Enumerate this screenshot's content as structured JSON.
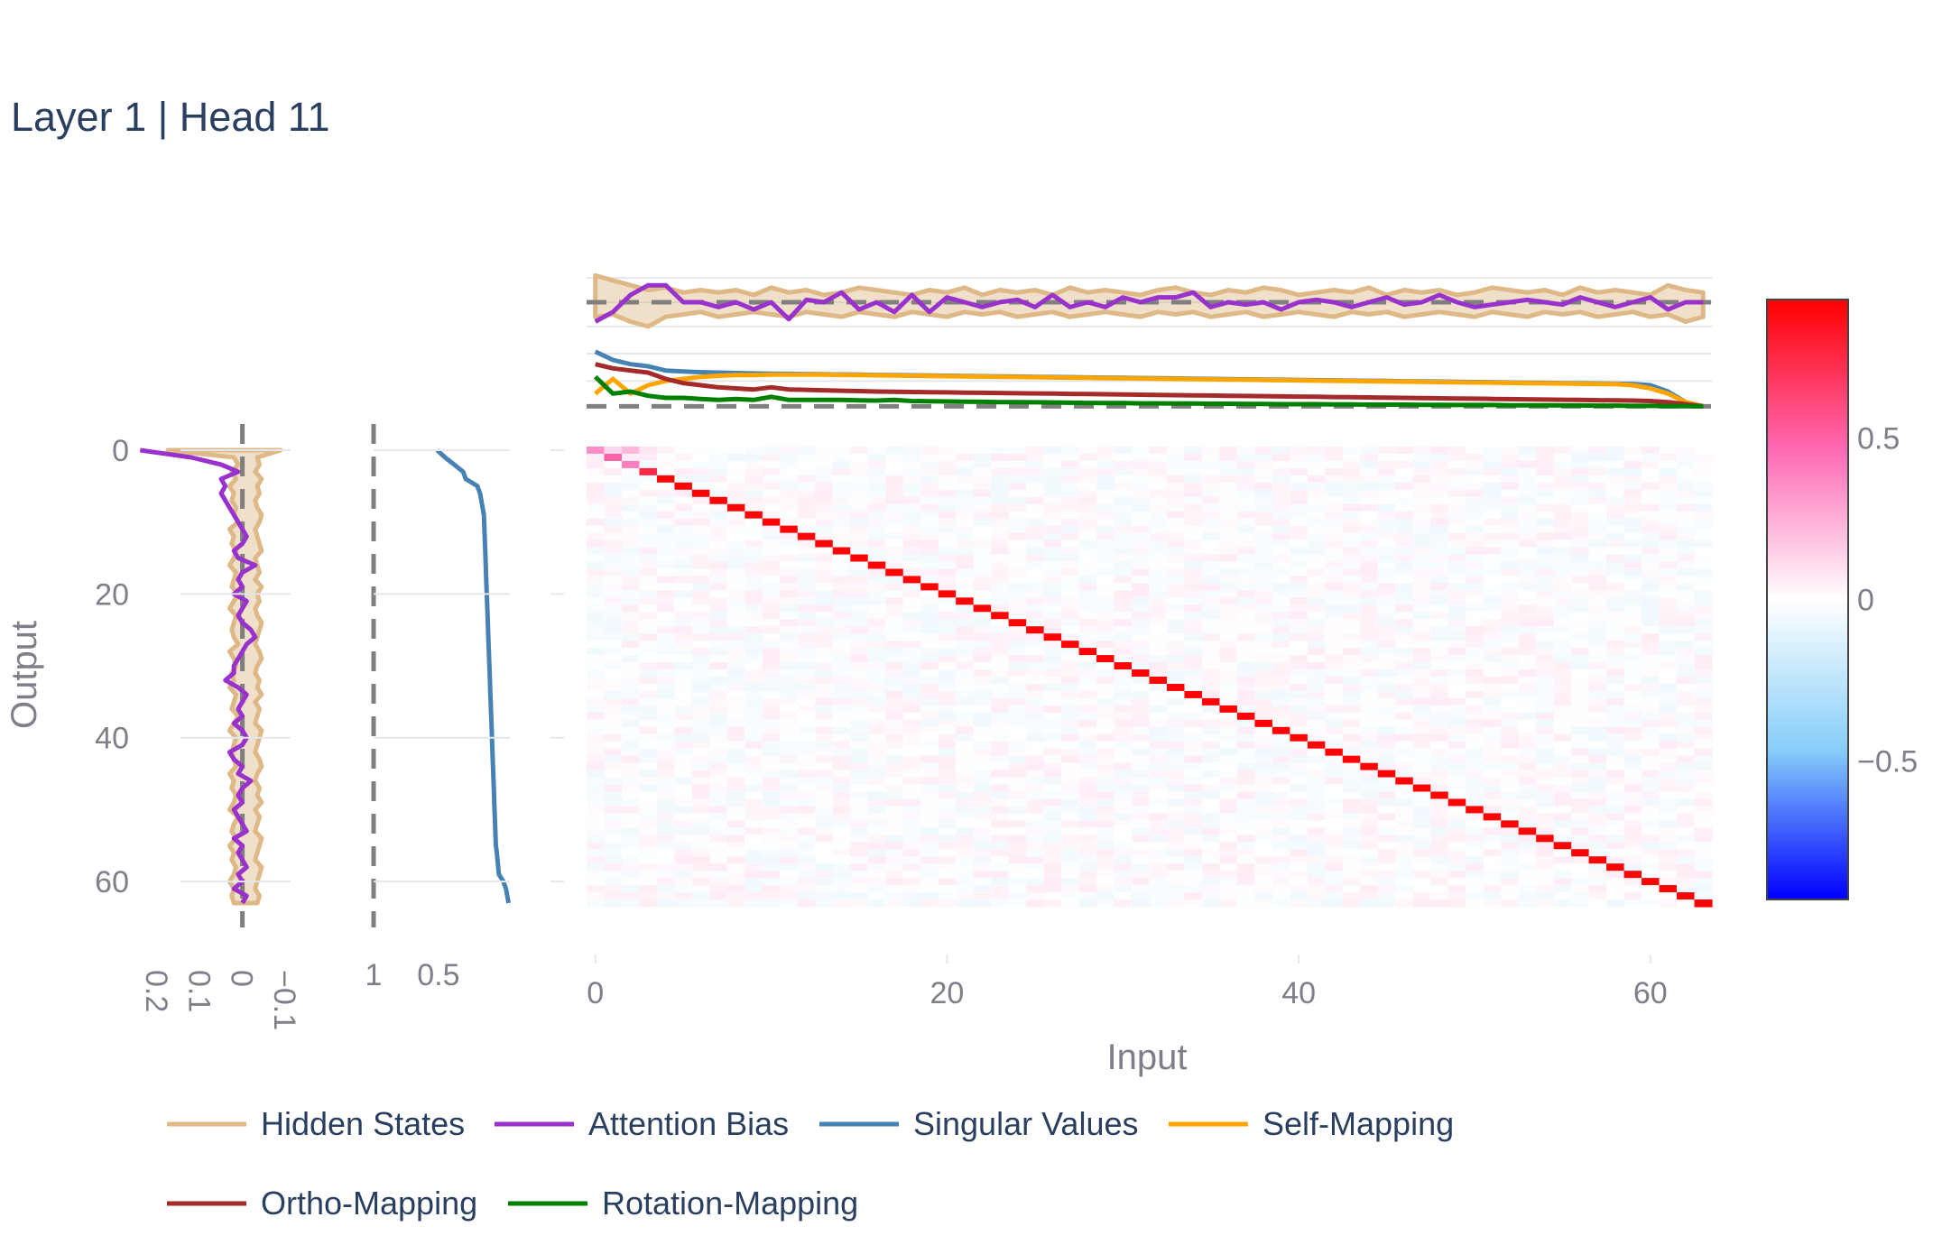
{
  "title": "Layer 1 | Head 11",
  "colors": {
    "hidden_states": "#deb887",
    "attention_bias": "#9932cc",
    "singular_values": "#4682b4",
    "self_mapping": "#ffa500",
    "ortho_mapping": "#a52a2a",
    "rotation_mapping": "#008000",
    "reference_line": "#7f7f7f",
    "colorscale": [
      "#0000ff",
      "#87cefa",
      "#ffffff",
      "#ff69b4",
      "#ff0000"
    ]
  },
  "chart_data": [
    {
      "type": "heatmap",
      "name": "main-heatmap",
      "xlabel": "Input",
      "ylabel": "Output",
      "n": 64,
      "xlim": [
        -0.5,
        63.5
      ],
      "ylim": [
        63.5,
        -0.5
      ],
      "x_ticks": [
        0,
        20,
        40,
        60
      ],
      "y_ticks": [
        0,
        20,
        40,
        60
      ],
      "z_range": [
        -0.93,
        0.93
      ],
      "diagonal_value": 0.92,
      "diagonal_start": 4,
      "first_row_values": [
        -0.3,
        0.12,
        0.22,
        0.08
      ],
      "diagonal_head_values": [
        0.35,
        0.5,
        0.4,
        0.75
      ],
      "note_offdiagonal": "near 0 (|z| < 0.1)"
    },
    {
      "type": "line",
      "name": "left-margin-hidden-states-and-bias",
      "orientation": "vertical",
      "x_axis_reversed": true,
      "x_ticks": [
        0.2,
        0.1,
        0,
        -0.1
      ],
      "xlim": [
        0.23,
        -0.13
      ],
      "reference_x": 0,
      "band_upper": [
        0.175,
        0.02,
        0.01,
        0.025,
        0.015,
        0.03,
        0.02,
        0.025,
        0.015,
        0.02,
        0.01,
        0.03,
        0.02,
        0.025,
        0.015,
        0.02,
        0.03,
        0.015,
        0.02,
        0.025,
        0.01,
        0.02,
        0.03,
        0.015,
        0.02,
        0.025,
        0.02,
        0.01,
        0.03,
        0.02,
        0.015,
        0.025,
        0.02,
        0.03,
        0.015,
        0.02,
        0.025,
        0.01,
        0.02,
        0.03,
        0.015,
        0.02,
        0.025,
        0.02,
        0.015,
        0.03,
        0.02,
        0.025,
        0.015,
        0.02,
        0.03,
        0.01,
        0.02,
        0.025,
        0.015,
        0.03,
        0.02,
        0.025,
        0.015,
        0.02,
        0.03,
        0.02,
        0.025,
        0.02
      ],
      "band_lower": [
        -0.09,
        -0.035,
        -0.04,
        -0.03,
        -0.045,
        -0.035,
        -0.04,
        -0.03,
        -0.035,
        -0.045,
        -0.04,
        -0.03,
        -0.035,
        -0.04,
        -0.045,
        -0.03,
        -0.035,
        -0.04,
        -0.03,
        -0.045,
        -0.035,
        -0.04,
        -0.03,
        -0.035,
        -0.045,
        -0.04,
        -0.035,
        -0.03,
        -0.04,
        -0.045,
        -0.035,
        -0.03,
        -0.04,
        -0.035,
        -0.045,
        -0.03,
        -0.04,
        -0.035,
        -0.03,
        -0.045,
        -0.04,
        -0.035,
        -0.03,
        -0.04,
        -0.045,
        -0.035,
        -0.03,
        -0.04,
        -0.035,
        -0.045,
        -0.03,
        -0.04,
        -0.035,
        -0.03,
        -0.045,
        -0.04,
        -0.035,
        -0.03,
        -0.045,
        -0.04,
        -0.035,
        -0.03,
        -0.04,
        -0.035
      ],
      "attention_bias": [
        0.24,
        0.12,
        0.05,
        0.01,
        0.05,
        0.04,
        0.05,
        0.04,
        0.03,
        0.02,
        0.01,
        0.0,
        -0.01,
        0.0,
        0.02,
        0.01,
        -0.03,
        0.0,
        0.01,
        0.0,
        0.02,
        -0.01,
        0.0,
        0.01,
        0.0,
        -0.02,
        -0.03,
        -0.01,
        0.0,
        0.01,
        0.02,
        0.02,
        0.04,
        0.01,
        -0.01,
        0.0,
        0.01,
        0.0,
        0.02,
        0.0,
        -0.01,
        0.0,
        0.03,
        0.02,
        0.0,
        0.01,
        -0.02,
        0.0,
        0.01,
        0.0,
        0.02,
        0.01,
        0.0,
        -0.01,
        0.02,
        0.0,
        0.01,
        0.0,
        -0.01,
        0.01,
        0.0,
        0.02,
        -0.01,
        0.0
      ]
    },
    {
      "type": "line",
      "name": "left-margin-singular-values",
      "orientation": "vertical",
      "x_axis_reversed": true,
      "x_ticks": [
        1,
        0.5
      ],
      "xlim": [
        1.0,
        -0.05
      ],
      "reference_x": 1,
      "singular_values": [
        0.51,
        0.45,
        0.38,
        0.31,
        0.29,
        0.2,
        0.18,
        0.17,
        0.16,
        0.15,
        0.148,
        0.146,
        0.144,
        0.142,
        0.14,
        0.138,
        0.136,
        0.134,
        0.132,
        0.13,
        0.128,
        0.126,
        0.124,
        0.122,
        0.12,
        0.118,
        0.116,
        0.114,
        0.112,
        0.11,
        0.108,
        0.106,
        0.104,
        0.102,
        0.1,
        0.098,
        0.096,
        0.094,
        0.092,
        0.09,
        0.088,
        0.086,
        0.084,
        0.082,
        0.08,
        0.078,
        0.076,
        0.074,
        0.072,
        0.07,
        0.068,
        0.066,
        0.064,
        0.062,
        0.06,
        0.058,
        0.05,
        0.045,
        0.04,
        0.035,
        0.0,
        -0.02,
        -0.03,
        -0.04
      ]
    },
    {
      "type": "line",
      "name": "top-margin-hidden-states-and-bias",
      "reference_y": 0,
      "ylim": [
        -0.13,
        0.13
      ],
      "band_upper": [
        0.11,
        0.09,
        0.07,
        0.05,
        0.06,
        0.04,
        0.05,
        0.04,
        0.05,
        0.03,
        0.06,
        0.04,
        0.05,
        0.03,
        0.04,
        0.06,
        0.05,
        0.04,
        0.03,
        0.05,
        0.04,
        0.06,
        0.03,
        0.05,
        0.04,
        0.05,
        0.03,
        0.06,
        0.04,
        0.05,
        0.04,
        0.03,
        0.05,
        0.06,
        0.04,
        0.03,
        0.05,
        0.04,
        0.06,
        0.05,
        0.03,
        0.04,
        0.05,
        0.04,
        0.06,
        0.03,
        0.05,
        0.04,
        0.05,
        0.03,
        0.04,
        0.06,
        0.05,
        0.04,
        0.05,
        0.03,
        0.06,
        0.04,
        0.05,
        0.04,
        0.03,
        0.07,
        0.05,
        0.04
      ],
      "band_lower": [
        -0.06,
        -0.05,
        -0.08,
        -0.1,
        -0.06,
        -0.05,
        -0.04,
        -0.06,
        -0.05,
        -0.04,
        -0.05,
        -0.06,
        -0.04,
        -0.05,
        -0.06,
        -0.04,
        -0.05,
        -0.06,
        -0.04,
        -0.05,
        -0.06,
        -0.04,
        -0.05,
        -0.04,
        -0.06,
        -0.05,
        -0.04,
        -0.06,
        -0.05,
        -0.04,
        -0.05,
        -0.06,
        -0.04,
        -0.05,
        -0.04,
        -0.06,
        -0.05,
        -0.04,
        -0.06,
        -0.05,
        -0.04,
        -0.05,
        -0.06,
        -0.04,
        -0.05,
        -0.04,
        -0.06,
        -0.05,
        -0.04,
        -0.05,
        -0.06,
        -0.04,
        -0.05,
        -0.06,
        -0.04,
        -0.05,
        -0.04,
        -0.06,
        -0.05,
        -0.04,
        -0.06,
        -0.05,
        -0.08,
        -0.06
      ],
      "attention_bias": [
        -0.08,
        -0.04,
        0.03,
        0.07,
        0.07,
        0.0,
        0.0,
        -0.02,
        0.0,
        -0.03,
        0.0,
        -0.07,
        0.01,
        0.0,
        0.04,
        -0.03,
        0.0,
        -0.04,
        0.03,
        -0.04,
        0.02,
        0.0,
        -0.02,
        0.0,
        0.01,
        -0.02,
        0.03,
        -0.02,
        0.0,
        -0.02,
        0.02,
        0.0,
        0.02,
        0.02,
        0.04,
        -0.02,
        0.0,
        -0.01,
        0.0,
        -0.03,
        0.0,
        0.01,
        0.0,
        -0.02,
        0.0,
        0.02,
        -0.01,
        0.0,
        0.03,
        0.0,
        -0.02,
        -0.01,
        0.0,
        0.01,
        0.0,
        -0.01,
        0.02,
        0.0,
        -0.02,
        0.0,
        0.02,
        -0.03,
        0.0,
        0.0
      ]
    },
    {
      "type": "line",
      "name": "top-margin-mappings",
      "reference_y": 0,
      "ylim": [
        -0.02,
        0.28
      ],
      "x_ticks": [
        0,
        20,
        40,
        60
      ],
      "singular_values": [
        0.26,
        0.22,
        0.2,
        0.19,
        0.17,
        0.165,
        0.162,
        0.16,
        0.158,
        0.156,
        0.155,
        0.154,
        0.153,
        0.152,
        0.151,
        0.15,
        0.149,
        0.148,
        0.147,
        0.146,
        0.145,
        0.144,
        0.143,
        0.142,
        0.141,
        0.14,
        0.139,
        0.138,
        0.137,
        0.136,
        0.135,
        0.134,
        0.133,
        0.132,
        0.131,
        0.13,
        0.129,
        0.128,
        0.127,
        0.126,
        0.125,
        0.124,
        0.123,
        0.122,
        0.121,
        0.12,
        0.119,
        0.118,
        0.117,
        0.116,
        0.115,
        0.114,
        0.113,
        0.112,
        0.111,
        0.11,
        0.109,
        0.108,
        0.107,
        0.106,
        0.1,
        0.07,
        0.02,
        0.0
      ],
      "self_mapping": [
        0.06,
        0.13,
        0.06,
        0.1,
        0.12,
        0.13,
        0.14,
        0.145,
        0.148,
        0.148,
        0.15,
        0.15,
        0.15,
        0.15,
        0.149,
        0.148,
        0.147,
        0.146,
        0.145,
        0.144,
        0.143,
        0.142,
        0.141,
        0.14,
        0.139,
        0.138,
        0.137,
        0.136,
        0.135,
        0.134,
        0.133,
        0.132,
        0.131,
        0.13,
        0.129,
        0.128,
        0.127,
        0.126,
        0.125,
        0.124,
        0.123,
        0.122,
        0.121,
        0.12,
        0.119,
        0.118,
        0.117,
        0.116,
        0.115,
        0.114,
        0.113,
        0.112,
        0.111,
        0.11,
        0.109,
        0.108,
        0.107,
        0.106,
        0.105,
        0.1,
        0.085,
        0.06,
        0.02,
        0.0
      ],
      "ortho_mapping": [
        0.2,
        0.18,
        0.17,
        0.16,
        0.13,
        0.11,
        0.1,
        0.09,
        0.085,
        0.08,
        0.09,
        0.08,
        0.078,
        0.076,
        0.074,
        0.072,
        0.07,
        0.069,
        0.068,
        0.067,
        0.066,
        0.065,
        0.064,
        0.063,
        0.062,
        0.061,
        0.06,
        0.059,
        0.058,
        0.057,
        0.056,
        0.055,
        0.054,
        0.053,
        0.052,
        0.051,
        0.05,
        0.049,
        0.048,
        0.047,
        0.046,
        0.045,
        0.044,
        0.043,
        0.042,
        0.041,
        0.04,
        0.039,
        0.038,
        0.037,
        0.036,
        0.035,
        0.034,
        0.033,
        0.032,
        0.031,
        0.03,
        0.029,
        0.028,
        0.027,
        0.025,
        0.02,
        0.01,
        0.0
      ],
      "rotation_mapping": [
        0.14,
        0.06,
        0.07,
        0.05,
        0.04,
        0.04,
        0.035,
        0.03,
        0.035,
        0.03,
        0.045,
        0.03,
        0.03,
        0.03,
        0.03,
        0.028,
        0.027,
        0.03,
        0.025,
        0.024,
        0.023,
        0.022,
        0.021,
        0.02,
        0.02,
        0.019,
        0.018,
        0.017,
        0.016,
        0.015,
        0.015,
        0.014,
        0.014,
        0.013,
        0.013,
        0.012,
        0.012,
        0.011,
        0.011,
        0.01,
        0.01,
        0.01,
        0.009,
        0.009,
        0.008,
        0.008,
        0.008,
        0.007,
        0.007,
        0.006,
        0.006,
        0.006,
        0.005,
        0.005,
        0.005,
        0.004,
        0.004,
        0.003,
        0.003,
        0.002,
        0.002,
        0.001,
        0.0,
        0.0
      ]
    }
  ],
  "colorbar": {
    "ticks": [
      0.5,
      0,
      -0.5
    ],
    "tick_labels": [
      "0.5",
      "0",
      "−0.5"
    ]
  },
  "axes": {
    "left_hidden_ticks": [
      "0.2",
      "0.1",
      "0",
      "−0.1"
    ],
    "left_sv_ticks": [
      "1",
      "0.5"
    ],
    "main_x_ticks": [
      "0",
      "20",
      "40",
      "60"
    ],
    "main_y_ticks": [
      "0",
      "20",
      "40",
      "60"
    ],
    "xlabel": "Input",
    "ylabel": "Output"
  },
  "legend": [
    {
      "label": "Hidden States",
      "color": "#deb887"
    },
    {
      "label": "Attention Bias",
      "color": "#9932cc"
    },
    {
      "label": "Singular Values",
      "color": "#4682b4"
    },
    {
      "label": "Self-Mapping",
      "color": "#ffa500"
    },
    {
      "label": "Ortho-Mapping",
      "color": "#a52a2a"
    },
    {
      "label": "Rotation-Mapping",
      "color": "#008000"
    }
  ]
}
